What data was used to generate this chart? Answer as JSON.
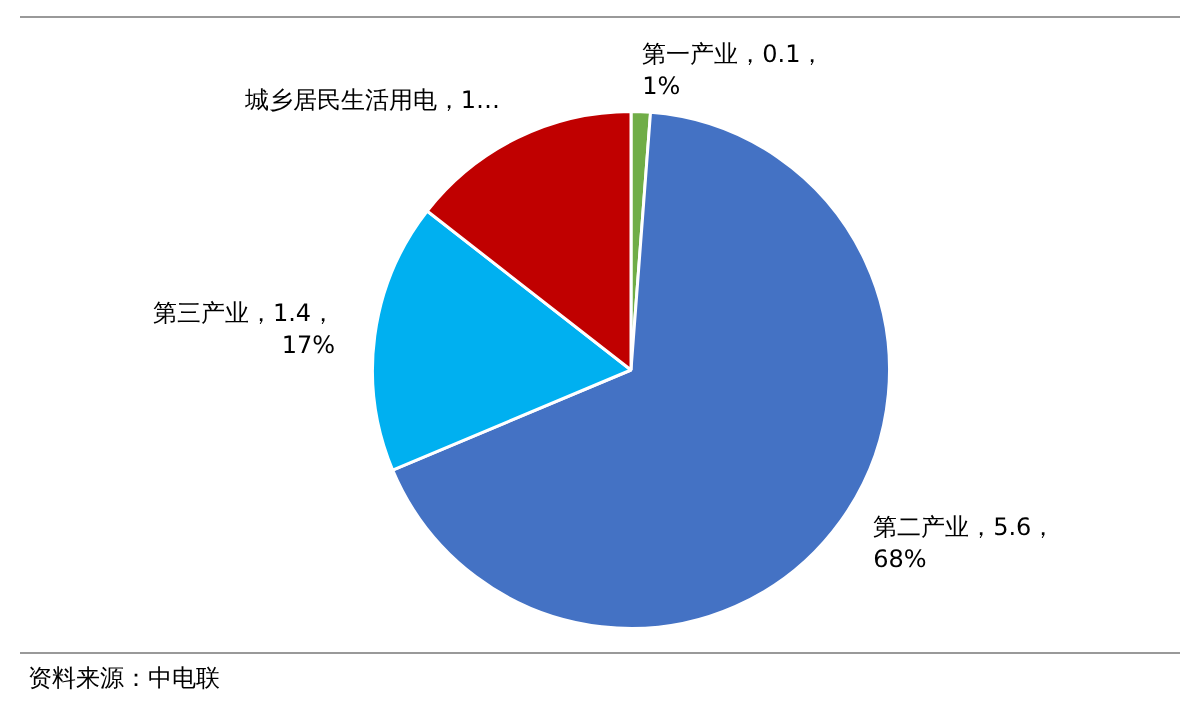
{
  "chart_data": {
    "type": "pie",
    "categories": [
      "第一产业",
      "第二产业",
      "第三产业",
      "城乡居民生活用电"
    ],
    "values": [
      0.1,
      5.6,
      1.4,
      1.2
    ],
    "colors": [
      "#70ad47",
      "#4472c4",
      "#00b0f0",
      "#c00000"
    ],
    "value_labels": [
      "，0.1，\n1%",
      "，5.6，\n68%",
      "，1.4，\n17%",
      "，1…"
    ],
    "legend": false,
    "annotations": [
      "资料来源：中电联"
    ]
  }
}
